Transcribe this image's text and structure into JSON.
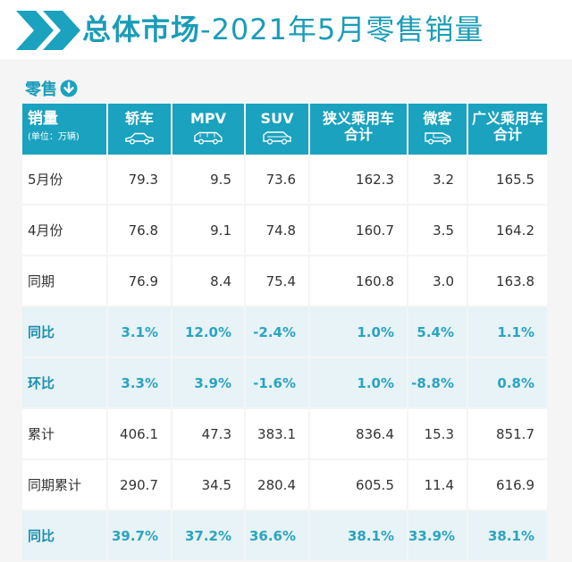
{
  "title": {
    "bold": "总体市场",
    "rest": "-2021年5月零售销量"
  },
  "section": {
    "label": "零售",
    "icon": "arrow-down-circle-icon"
  },
  "table": {
    "corner": {
      "label": "销量",
      "unit": "(单位：万辆)"
    },
    "columns": [
      {
        "label": "轿车",
        "label2": "",
        "icon": "sedan-icon"
      },
      {
        "label": "MPV",
        "label2": "",
        "icon": "mpv-icon"
      },
      {
        "label": "SUV",
        "label2": "",
        "icon": "suv-icon"
      },
      {
        "label": "狭义乘用车",
        "label2": "合计",
        "icon": ""
      },
      {
        "label": "微客",
        "label2": "",
        "icon": "minivan-icon"
      },
      {
        "label": "广义乘用车",
        "label2": "合计",
        "icon": ""
      }
    ],
    "rows": [
      {
        "label": "5月份",
        "values": [
          "79.3",
          "9.5",
          "73.6",
          "162.3",
          "3.2",
          "165.5"
        ],
        "highlight": false
      },
      {
        "label": "4月份",
        "values": [
          "76.8",
          "9.1",
          "74.8",
          "160.7",
          "3.5",
          "164.2"
        ],
        "highlight": false
      },
      {
        "label": "同期",
        "values": [
          "76.9",
          "8.4",
          "75.4",
          "160.8",
          "3.0",
          "163.8"
        ],
        "highlight": false
      },
      {
        "label": "同比",
        "values": [
          "3.1%",
          "12.0%",
          "-2.4%",
          "1.0%",
          "5.4%",
          "1.1%"
        ],
        "highlight": true
      },
      {
        "label": "环比",
        "values": [
          "3.3%",
          "3.9%",
          "-1.6%",
          "1.0%",
          "-8.8%",
          "0.8%"
        ],
        "highlight": true
      },
      {
        "label": "累计",
        "values": [
          "406.1",
          "47.3",
          "383.1",
          "836.4",
          "15.3",
          "851.7"
        ],
        "highlight": false
      },
      {
        "label": "同期累计",
        "values": [
          "290.7",
          "34.5",
          "280.4",
          "605.5",
          "11.4",
          "616.9"
        ],
        "highlight": false
      },
      {
        "label": "同比",
        "values": [
          "39.7%",
          "37.2%",
          "36.6%",
          "38.1%",
          "33.9%",
          "38.1%"
        ],
        "highlight": true
      }
    ]
  },
  "colors": {
    "accent": "#1aa2bf",
    "highlight_row": "#e7f3f6",
    "highlight_text": "#2aa4c1"
  }
}
